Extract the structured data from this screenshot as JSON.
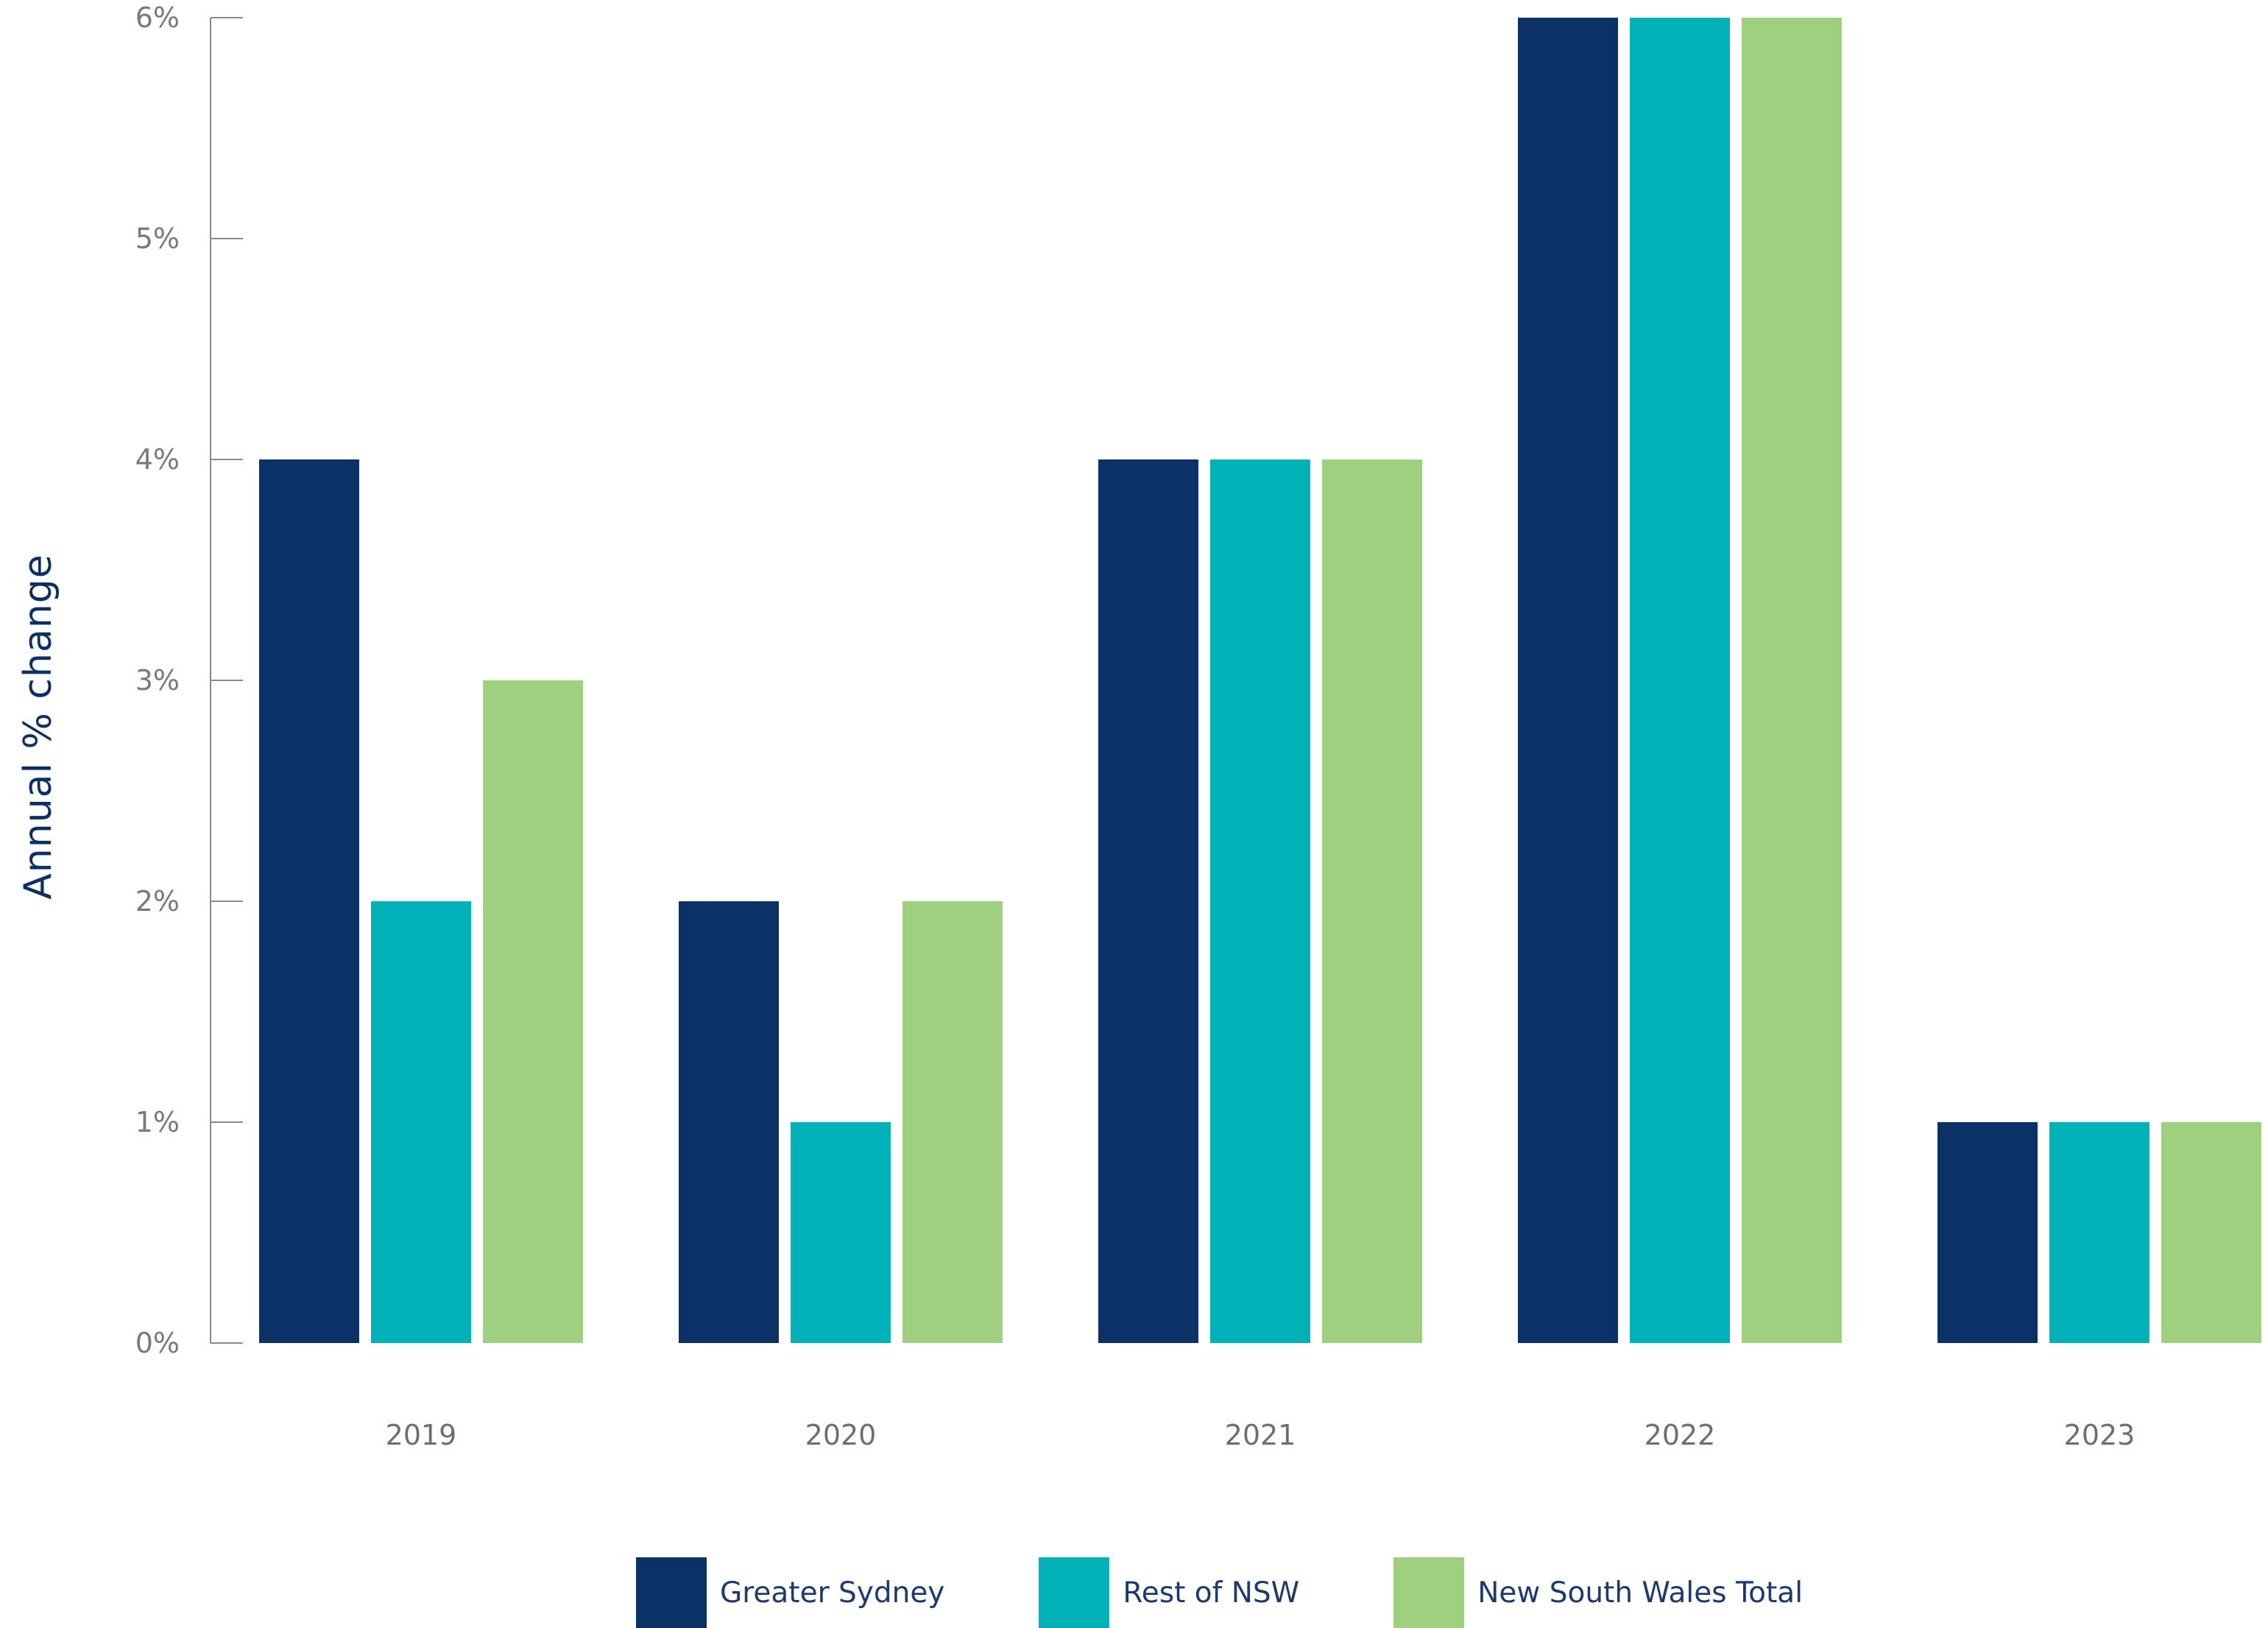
{
  "chart_data": {
    "type": "bar",
    "title": "",
    "xlabel": "",
    "ylabel": "Annual % change",
    "categories": [
      "2019",
      "2020",
      "2021",
      "2022",
      "2023"
    ],
    "series": [
      {
        "name": "Greater Sydney",
        "color": "#0b3166",
        "values": [
          4,
          2,
          4,
          6,
          1
        ]
      },
      {
        "name": "Rest of NSW",
        "color": "#00b1b8",
        "values": [
          2,
          1,
          4,
          6,
          1
        ]
      },
      {
        "name": "New South Wales Total",
        "color": "#9ecf7c",
        "values": [
          3,
          2,
          4,
          6,
          1
        ]
      }
    ],
    "ylim": [
      0,
      6
    ],
    "yticks": [
      "0%",
      "1%",
      "2%",
      "3%",
      "4%",
      "5%",
      "6%"
    ],
    "grid": false,
    "legend_position": "bottom"
  }
}
